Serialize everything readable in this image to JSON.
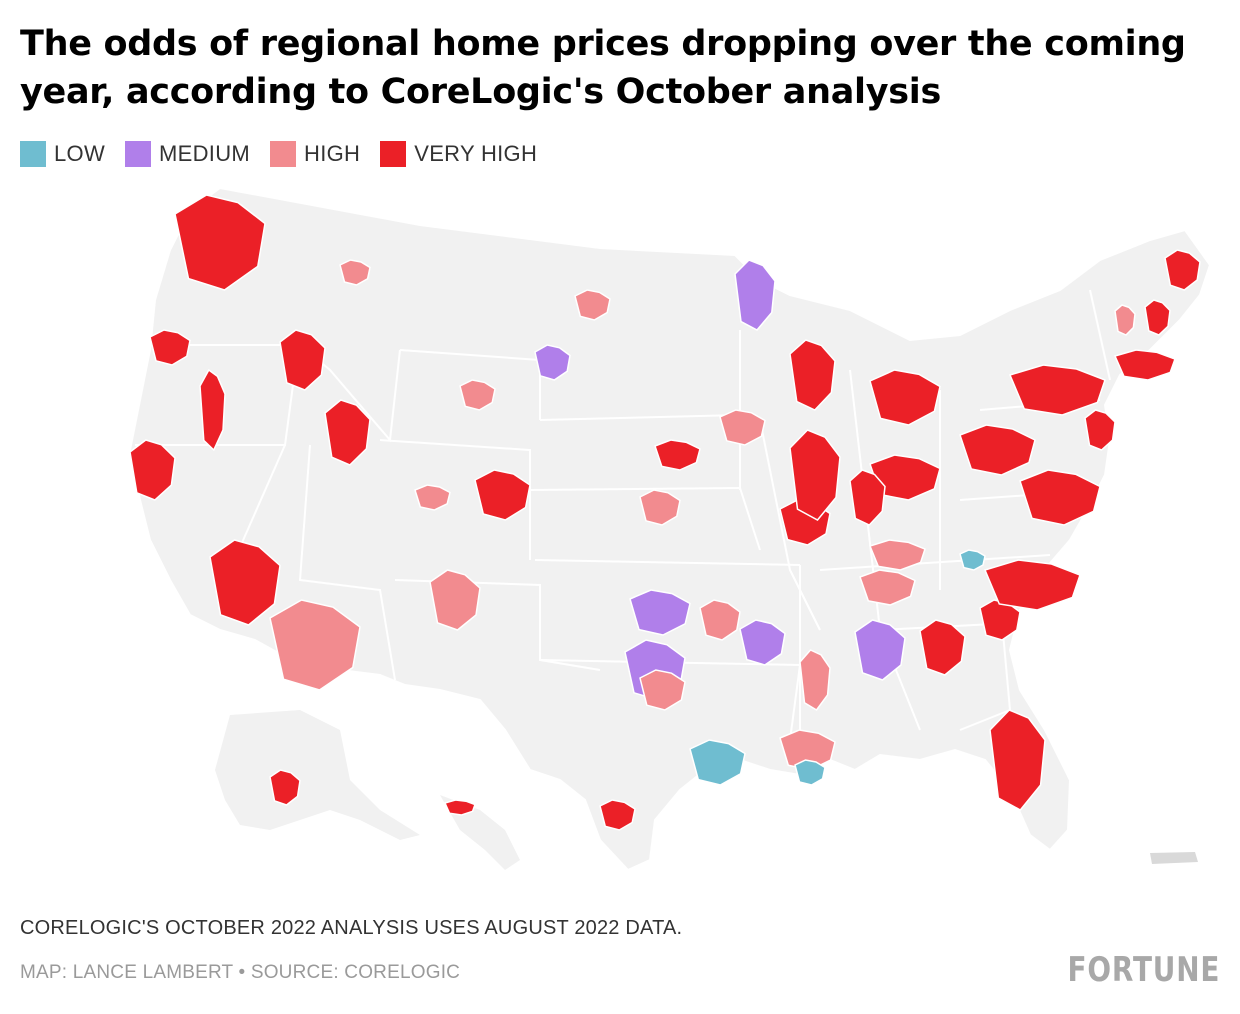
{
  "title": "The odds of regional home prices dropping over the coming year, according to CoreLogic's October analysis",
  "legend": [
    {
      "label": "LOW",
      "color": "#6fbdd0"
    },
    {
      "label": "MEDIUM",
      "color": "#b07fea"
    },
    {
      "label": "HIGH",
      "color": "#f28b8f"
    },
    {
      "label": "VERY HIGH",
      "color": "#eb2027"
    }
  ],
  "map_colors": {
    "background": "#f1f1f1",
    "borders": "#ffffff",
    "no_data": "#d9d9d9"
  },
  "map_regions": [
    {
      "state": "WA",
      "level": "very_high"
    },
    {
      "state": "OR",
      "level": "very_high"
    },
    {
      "state": "CA",
      "level": "very_high"
    },
    {
      "state": "NV",
      "level": "very_high"
    },
    {
      "state": "ID",
      "level": "very_high"
    },
    {
      "state": "UT",
      "level": "very_high"
    },
    {
      "state": "AZ",
      "level": "very_high"
    },
    {
      "state": "AZ",
      "level": "high"
    },
    {
      "state": "CO",
      "level": "very_high"
    },
    {
      "state": "CO",
      "level": "high"
    },
    {
      "state": "MT",
      "level": "high"
    },
    {
      "state": "WY",
      "level": "high"
    },
    {
      "state": "SD",
      "level": "medium"
    },
    {
      "state": "ND",
      "level": "high"
    },
    {
      "state": "MN",
      "level": "medium"
    },
    {
      "state": "NM",
      "level": "high"
    },
    {
      "state": "TX",
      "level": "medium"
    },
    {
      "state": "TX",
      "level": "high"
    },
    {
      "state": "TX",
      "level": "low"
    },
    {
      "state": "TX",
      "level": "very_high"
    },
    {
      "state": "OK",
      "level": "medium"
    },
    {
      "state": "OK",
      "level": "high"
    },
    {
      "state": "KS",
      "level": "high"
    },
    {
      "state": "NE",
      "level": "very_high"
    },
    {
      "state": "IA",
      "level": "high"
    },
    {
      "state": "MO",
      "level": "very_high"
    },
    {
      "state": "AR",
      "level": "medium"
    },
    {
      "state": "LA",
      "level": "high"
    },
    {
      "state": "LA",
      "level": "low"
    },
    {
      "state": "MS",
      "level": "high"
    },
    {
      "state": "AL",
      "level": "medium"
    },
    {
      "state": "TN",
      "level": "high"
    },
    {
      "state": "KY",
      "level": "high"
    },
    {
      "state": "GA",
      "level": "very_high"
    },
    {
      "state": "FL",
      "level": "very_high"
    },
    {
      "state": "SC",
      "level": "very_high"
    },
    {
      "state": "NC",
      "level": "very_high"
    },
    {
      "state": "VA",
      "level": "very_high"
    },
    {
      "state": "WV",
      "level": "low"
    },
    {
      "state": "OH",
      "level": "very_high"
    },
    {
      "state": "MI",
      "level": "very_high"
    },
    {
      "state": "IN",
      "level": "very_high"
    },
    {
      "state": "IL",
      "level": "very_high"
    },
    {
      "state": "WI",
      "level": "very_high"
    },
    {
      "state": "PA",
      "level": "very_high"
    },
    {
      "state": "NY",
      "level": "very_high"
    },
    {
      "state": "NJ",
      "level": "very_high"
    },
    {
      "state": "MA",
      "level": "very_high"
    },
    {
      "state": "ME",
      "level": "very_high"
    },
    {
      "state": "NH",
      "level": "very_high"
    },
    {
      "state": "VT",
      "level": "high"
    },
    {
      "state": "AK",
      "level": "very_high"
    },
    {
      "state": "HI",
      "level": "very_high"
    },
    {
      "state": "PR",
      "level": "no_data"
    }
  ],
  "note": "CORELOGIC'S OCTOBER 2022 ANALYSIS USES AUGUST 2022 DATA.",
  "credit": "MAP: LANCE LAMBERT • SOURCE: CORELOGIC",
  "brand": "FORTUNE"
}
